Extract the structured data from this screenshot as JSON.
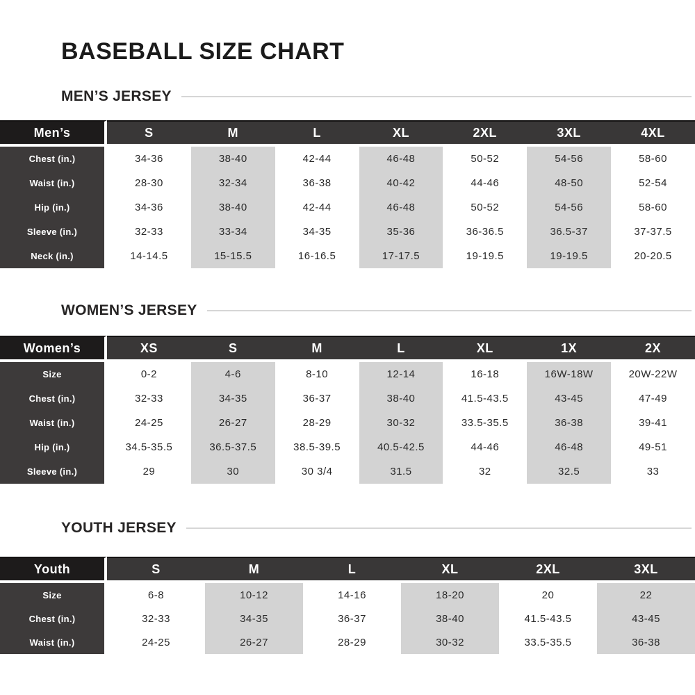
{
  "page": {
    "title": "BASEBALL SIZE CHART"
  },
  "colors": {
    "page_bg": "#ffffff",
    "title_text": "#1b1b1b",
    "heading_text": "#262424",
    "divider_line": "#d6d6d6",
    "corner_bg": "#1d1b1b",
    "header_bg": "#393737",
    "label_bg": "#3d3a3a",
    "shaded_col": "#d3d3d3",
    "value_text": "#2b2b2b",
    "separator": "#ffffff"
  },
  "sections": [
    {
      "heading": "MEN’S JERSEY",
      "corner_label": "Men’s",
      "sizes": [
        "S",
        "M",
        "L",
        "XL",
        "2XL",
        "3XL",
        "4XL"
      ],
      "shaded_size_columns": [
        "M",
        "XL",
        "3XL"
      ],
      "rows": [
        {
          "label": "Chest (in.)",
          "values": [
            "34-36",
            "38-40",
            "42-44",
            "46-48",
            "50-52",
            "54-56",
            "58-60"
          ]
        },
        {
          "label": "Waist (in.)",
          "values": [
            "28-30",
            "32-34",
            "36-38",
            "40-42",
            "44-46",
            "48-50",
            "52-54"
          ]
        },
        {
          "label": "Hip (in.)",
          "values": [
            "34-36",
            "38-40",
            "42-44",
            "46-48",
            "50-52",
            "54-56",
            "58-60"
          ]
        },
        {
          "label": "Sleeve (in.)",
          "values": [
            "32-33",
            "33-34",
            "34-35",
            "35-36",
            "36-36.5",
            "36.5-37",
            "37-37.5"
          ]
        },
        {
          "label": "Neck (in.)",
          "values": [
            "14-14.5",
            "15-15.5",
            "16-16.5",
            "17-17.5",
            "19-19.5",
            "19-19.5",
            "20-20.5"
          ]
        }
      ]
    },
    {
      "heading": "WOMEN’S JERSEY",
      "corner_label": "Women’s",
      "sizes": [
        "XS",
        "S",
        "M",
        "L",
        "XL",
        "1X",
        "2X"
      ],
      "shaded_size_columns": [
        "S",
        "L",
        "1X"
      ],
      "rows": [
        {
          "label": "Size",
          "values": [
            "0-2",
            "4-6",
            "8-10",
            "12-14",
            "16-18",
            "16W-18W",
            "20W-22W"
          ]
        },
        {
          "label": "Chest (in.)",
          "values": [
            "32-33",
            "34-35",
            "36-37",
            "38-40",
            "41.5-43.5",
            "43-45",
            "47-49"
          ]
        },
        {
          "label": "Waist (in.)",
          "values": [
            "24-25",
            "26-27",
            "28-29",
            "30-32",
            "33.5-35.5",
            "36-38",
            "39-41"
          ]
        },
        {
          "label": "Hip (in.)",
          "values": [
            "34.5-35.5",
            "36.5-37.5",
            "38.5-39.5",
            "40.5-42.5",
            "44-46",
            "46-48",
            "49-51"
          ]
        },
        {
          "label": "Sleeve (in.)",
          "values": [
            "29",
            "30",
            "30 3/4",
            "31.5",
            "32",
            "32.5",
            "33"
          ]
        }
      ]
    },
    {
      "heading": "YOUTH JERSEY",
      "corner_label": "Youth",
      "sizes": [
        "S",
        "M",
        "L",
        "XL",
        "2XL",
        "3XL"
      ],
      "shaded_size_columns": [
        "M",
        "XL",
        "3XL"
      ],
      "rows": [
        {
          "label": "Size",
          "values": [
            "6-8",
            "10-12",
            "14-16",
            "18-20",
            "20",
            "22"
          ]
        },
        {
          "label": "Chest (in.)",
          "values": [
            "32-33",
            "34-35",
            "36-37",
            "38-40",
            "41.5-43.5",
            "43-45"
          ]
        },
        {
          "label": "Waist (in.)",
          "values": [
            "24-25",
            "26-27",
            "28-29",
            "30-32",
            "33.5-35.5",
            "36-38"
          ]
        }
      ]
    }
  ]
}
